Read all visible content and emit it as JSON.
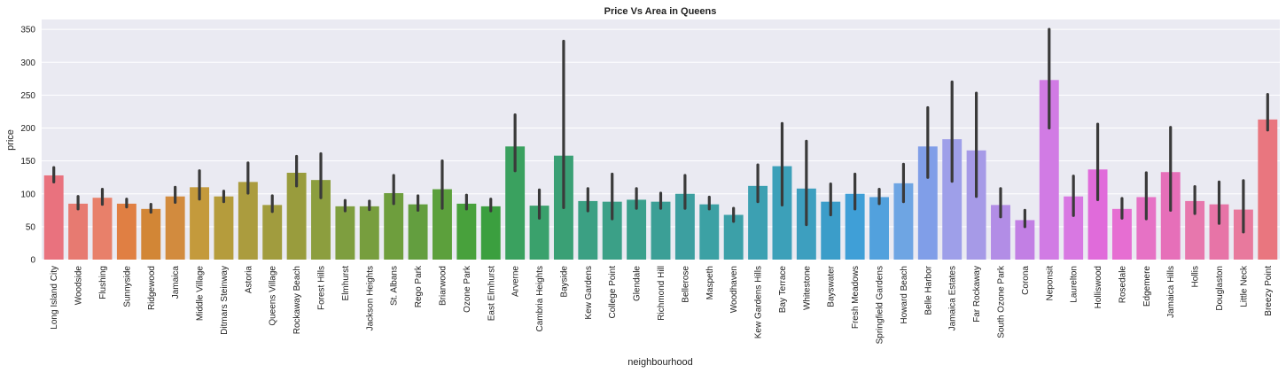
{
  "chart_data": {
    "type": "bar",
    "title": "Price Vs Area in Queens",
    "xlabel": "neighbourhood",
    "ylabel": "price",
    "ylim": [
      0,
      365
    ],
    "yticks": [
      0,
      50,
      100,
      150,
      200,
      250,
      300,
      350
    ],
    "grid": true,
    "background": "#eaeaf2",
    "categories": [
      "Long Island City",
      "Woodside",
      "Flushing",
      "Sunnyside",
      "Ridgewood",
      "Jamaica",
      "Middle Village",
      "Ditmars Steinway",
      "Astoria",
      "Queens Village",
      "Rockaway Beach",
      "Forest Hills",
      "Elmhurst",
      "Jackson Heights",
      "St. Albans",
      "Rego Park",
      "Briarwood",
      "Ozone Park",
      "East Elmhurst",
      "Arverne",
      "Cambria Heights",
      "Bayside",
      "Kew Gardens",
      "College Point",
      "Glendale",
      "Richmond Hill",
      "Bellerose",
      "Maspeth",
      "Woodhaven",
      "Kew Gardens Hills",
      "Bay Terrace",
      "Whitestone",
      "Bayswater",
      "Fresh Meadows",
      "Springfield Gardens",
      "Howard Beach",
      "Belle Harbor",
      "Jamaica Estates",
      "Far Rockaway",
      "South Ozone Park",
      "Corona",
      "Neponsit",
      "Laurelton",
      "Holliswood",
      "Rosedale",
      "Edgemere",
      "Jamaica Hills",
      "Hollis",
      "Douglaston",
      "Little Neck",
      "Breezy Point"
    ],
    "values": [
      128,
      85,
      94,
      85,
      77,
      96,
      110,
      96,
      118,
      83,
      132,
      121,
      81,
      81,
      101,
      84,
      107,
      85,
      81,
      172,
      82,
      158,
      89,
      88,
      91,
      88,
      100,
      84,
      68,
      112,
      142,
      108,
      88,
      100,
      95,
      116,
      172,
      183,
      166,
      83,
      60,
      273,
      96,
      137,
      77,
      95,
      133,
      89,
      84,
      76,
      213
    ],
    "ci_low": [
      118,
      77,
      84,
      80,
      72,
      87,
      92,
      88,
      101,
      73,
      112,
      94,
      74,
      76,
      85,
      75,
      78,
      77,
      74,
      135,
      63,
      79,
      74,
      62,
      78,
      78,
      78,
      77,
      58,
      88,
      83,
      53,
      68,
      77,
      85,
      88,
      125,
      119,
      96,
      65,
      50,
      200,
      67,
      91,
      63,
      62,
      75,
      70,
      55,
      42,
      197
    ],
    "ci_high": [
      140,
      96,
      107,
      92,
      84,
      110,
      135,
      104,
      147,
      97,
      157,
      161,
      90,
      89,
      128,
      97,
      150,
      98,
      92,
      220,
      106,
      332,
      108,
      130,
      108,
      101,
      128,
      95,
      78,
      144,
      207,
      180,
      115,
      130,
      107,
      145,
      231,
      270,
      253,
      108,
      75,
      350,
      127,
      206,
      93,
      132,
      201,
      111,
      118,
      120,
      251
    ],
    "colors": [
      "#e9727e",
      "#e77a71",
      "#e8806a",
      "#e07f43",
      "#d28636",
      "#d28b3e",
      "#c49a3c",
      "#b59c3c",
      "#ab9c3e",
      "#a19c3e",
      "#999c3d",
      "#8c9e3e",
      "#7e9e3f",
      "#779e3e",
      "#6e9e3d",
      "#639e3f",
      "#5ca03c",
      "#48a13c",
      "#3b9f3f",
      "#3aa15f",
      "#3aa16c",
      "#3aa075",
      "#3ba083",
      "#3ba087",
      "#3aa08c",
      "#3b9f96",
      "#3c9fa0",
      "#3ca1a4",
      "#3ca0a8",
      "#3ca0b2",
      "#3ca0b9",
      "#3d9fbf",
      "#3b9dc9",
      "#3f9fd7",
      "#52a1dd",
      "#6ea5e3",
      "#809ee8",
      "#9e9fe9",
      "#a69ae7",
      "#b28de6",
      "#c27fe4",
      "#d17be4",
      "#d878e2",
      "#e06bda",
      "#e66ed2",
      "#e672c5",
      "#e66fb9",
      "#e777ad",
      "#e774a7",
      "#e8799d",
      "#e9767f"
    ],
    "errorbar_color": "#3a3a3a"
  }
}
